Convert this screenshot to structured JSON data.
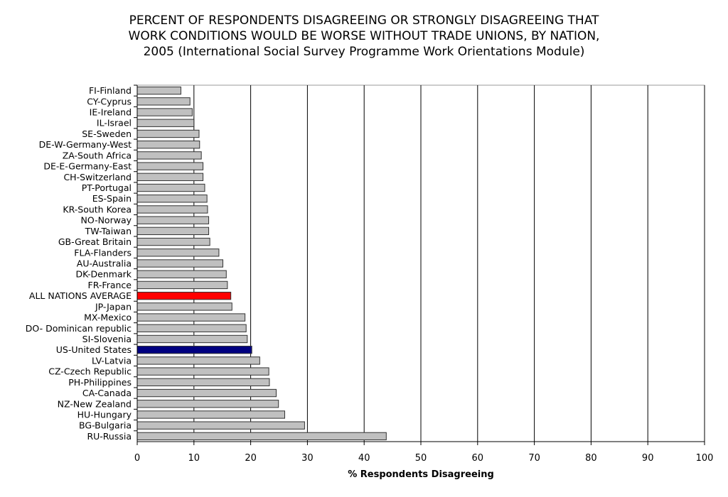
{
  "chart_data": {
    "type": "bar",
    "orientation": "horizontal",
    "title_lines": [
      "PERCENT OF RESPONDENTS DISAGREEING OR STRONGLY DISAGREEING THAT",
      "WORK CONDITIONS WOULD BE WORSE WITHOUT TRADE UNIONS, BY NATION,",
      "2005 (International Social Survey Programme Work Orientations Module)"
    ],
    "xlabel": "% Respondents Disagreeing",
    "ylabel": "",
    "xlim": [
      0,
      100
    ],
    "xticks": [
      0,
      10,
      20,
      30,
      40,
      50,
      60,
      70,
      80,
      90,
      100
    ],
    "grid": "vertical",
    "categories": [
      "FI-Finland",
      "CY-Cyprus",
      "IE-Ireland",
      "IL-Israel",
      "SE-Sweden",
      "DE-W-Germany-West",
      "ZA-South Africa",
      "DE-E-Germany-East",
      "CH-Switzerland",
      "PT-Portugal",
      "ES-Spain",
      "KR-South Korea",
      "NO-Norway",
      "TW-Taiwan",
      "GB-Great Britain",
      "FLA-Flanders",
      "AU-Australia",
      "DK-Denmark",
      "FR-France",
      "ALL NATIONS AVERAGE",
      "JP-Japan",
      "MX-Mexico",
      "DO- Dominican republic",
      "SI-Slovenia",
      "US-United States",
      "LV-Latvia",
      "CZ-Czech Republic",
      "PH-Philippines",
      "CA-Canada",
      "NZ-New Zealand",
      "HU-Hungary",
      "BG-Bulgaria",
      "RU-Russia"
    ],
    "values": [
      7.7,
      9.3,
      9.7,
      10.0,
      10.9,
      11.0,
      11.3,
      11.6,
      11.6,
      11.9,
      12.3,
      12.4,
      12.6,
      12.6,
      12.8,
      14.4,
      15.1,
      15.7,
      15.9,
      16.5,
      16.7,
      19.0,
      19.2,
      19.4,
      20.2,
      21.6,
      23.2,
      23.3,
      24.5,
      24.9,
      26.0,
      29.5,
      43.9
    ],
    "colors": {
      "default": "#c0c0c0",
      "ALL NATIONS AVERAGE": "#ff0000",
      "US-United States": "#000080",
      "border": "#333333"
    }
  }
}
